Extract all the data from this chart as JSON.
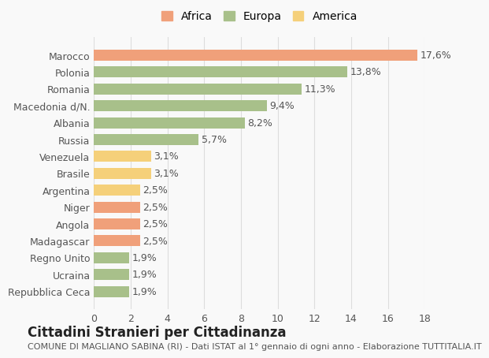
{
  "categories": [
    "Marocco",
    "Polonia",
    "Romania",
    "Macedonia d/N.",
    "Albania",
    "Russia",
    "Venezuela",
    "Brasile",
    "Argentina",
    "Niger",
    "Angola",
    "Madagascar",
    "Regno Unito",
    "Ucraina",
    "Repubblica Ceca"
  ],
  "values": [
    17.6,
    13.8,
    11.3,
    9.4,
    8.2,
    5.7,
    3.1,
    3.1,
    2.5,
    2.5,
    2.5,
    2.5,
    1.9,
    1.9,
    1.9
  ],
  "labels": [
    "17,6%",
    "13,8%",
    "11,3%",
    "9,4%",
    "8,2%",
    "5,7%",
    "3,1%",
    "3,1%",
    "2,5%",
    "2,5%",
    "2,5%",
    "2,5%",
    "1,9%",
    "1,9%",
    "1,9%"
  ],
  "colors": [
    "#f0a07a",
    "#a8c08a",
    "#a8c08a",
    "#a8c08a",
    "#a8c08a",
    "#a8c08a",
    "#f5d07a",
    "#f5d07a",
    "#f5d07a",
    "#f0a07a",
    "#f0a07a",
    "#f0a07a",
    "#a8c08a",
    "#a8c08a",
    "#a8c08a"
  ],
  "legend": [
    {
      "label": "Africa",
      "color": "#f0a07a"
    },
    {
      "label": "Europa",
      "color": "#a8c08a"
    },
    {
      "label": "America",
      "color": "#f5d07a"
    }
  ],
  "title": "Cittadini Stranieri per Cittadinanza",
  "subtitle": "COMUNE DI MAGLIANO SABINA (RI) - Dati ISTAT al 1° gennaio di ogni anno - Elaborazione TUTTITALIA.IT",
  "xlim": [
    0,
    18
  ],
  "xticks": [
    0,
    2,
    4,
    6,
    8,
    10,
    12,
    14,
    16,
    18
  ],
  "background_color": "#f9f9f9",
  "grid_color": "#dddddd",
  "bar_height": 0.65,
  "label_fontsize": 9,
  "tick_fontsize": 9,
  "title_fontsize": 12,
  "subtitle_fontsize": 8
}
